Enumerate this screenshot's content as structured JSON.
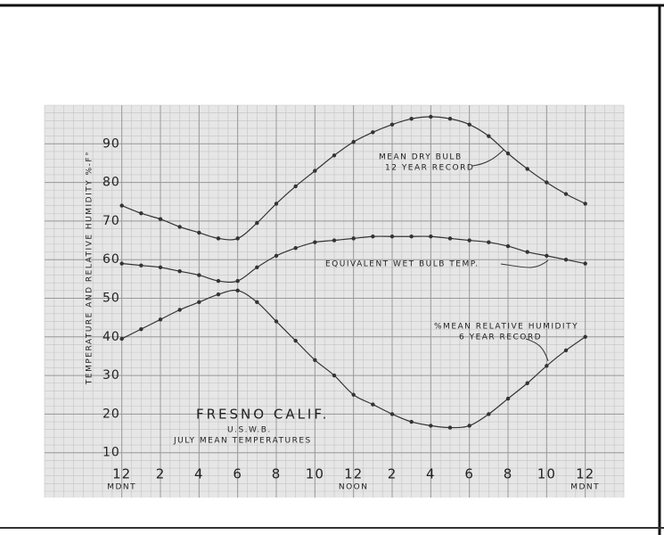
{
  "chart_data": {
    "type": "line",
    "title": "FRESNO CALIF.",
    "subtitle": "U.S.W.B.",
    "caption": "JULY MEAN TEMPERATURES",
    "ylabel": "TEMPERATURE AND RELATIVE HUMIDITY %-F°",
    "x": [
      0,
      1,
      2,
      3,
      4,
      5,
      6,
      7,
      8,
      9,
      10,
      11,
      12,
      13,
      14,
      15,
      16,
      17,
      18,
      19,
      20,
      21,
      22,
      23,
      24
    ],
    "series": [
      {
        "name": "MEAN DRY BULB",
        "note": "12 YEAR RECORD",
        "color": "#333333",
        "values": [
          74,
          72,
          70.5,
          68.5,
          67,
          65.5,
          65.5,
          69.5,
          74.5,
          79,
          83,
          87,
          90.5,
          93,
          95,
          96.5,
          97,
          96.5,
          95,
          92,
          87.5,
          83.5,
          80,
          77,
          74.5
        ]
      },
      {
        "name": "EQUIVALENT WET BULB TEMP.",
        "color": "#333333",
        "values": [
          59,
          58.5,
          58,
          57,
          56,
          54.5,
          54.5,
          58,
          61,
          63,
          64.5,
          65,
          65.5,
          66,
          66,
          66,
          66,
          65.5,
          65,
          64.5,
          63.5,
          62,
          61,
          60,
          59
        ]
      },
      {
        "name": "%MEAN RELATIVE HUMIDITY",
        "note": "6 YEAR RECORD",
        "color": "#333333",
        "values": [
          39.5,
          42,
          44.5,
          47,
          49,
          51,
          52,
          49,
          44,
          39,
          34,
          30,
          25,
          22.5,
          20,
          18,
          17,
          16.5,
          17,
          20,
          24,
          28,
          32.5,
          36.5,
          40
        ]
      }
    ],
    "xlim": [
      -4,
      26
    ],
    "xticks": [
      {
        "value": 0,
        "label": "12"
      },
      2,
      4,
      6,
      8,
      10,
      12,
      {
        "value": 14,
        "label": "2"
      },
      {
        "value": 16,
        "label": "4"
      },
      {
        "value": 18,
        "label": "6"
      },
      {
        "value": 20,
        "label": "8"
      },
      {
        "value": 22,
        "label": "10"
      },
      {
        "value": 24,
        "label": "12"
      }
    ],
    "xsublabels": [
      {
        "value": 0,
        "label": "MDNT"
      },
      {
        "value": 12,
        "label": "NOON"
      },
      {
        "value": 24,
        "label": "MDNT"
      }
    ],
    "ylim": [
      0,
      100
    ],
    "yticks": [
      10,
      20,
      30,
      40,
      50,
      60,
      70,
      80,
      90
    ],
    "grid": true
  }
}
